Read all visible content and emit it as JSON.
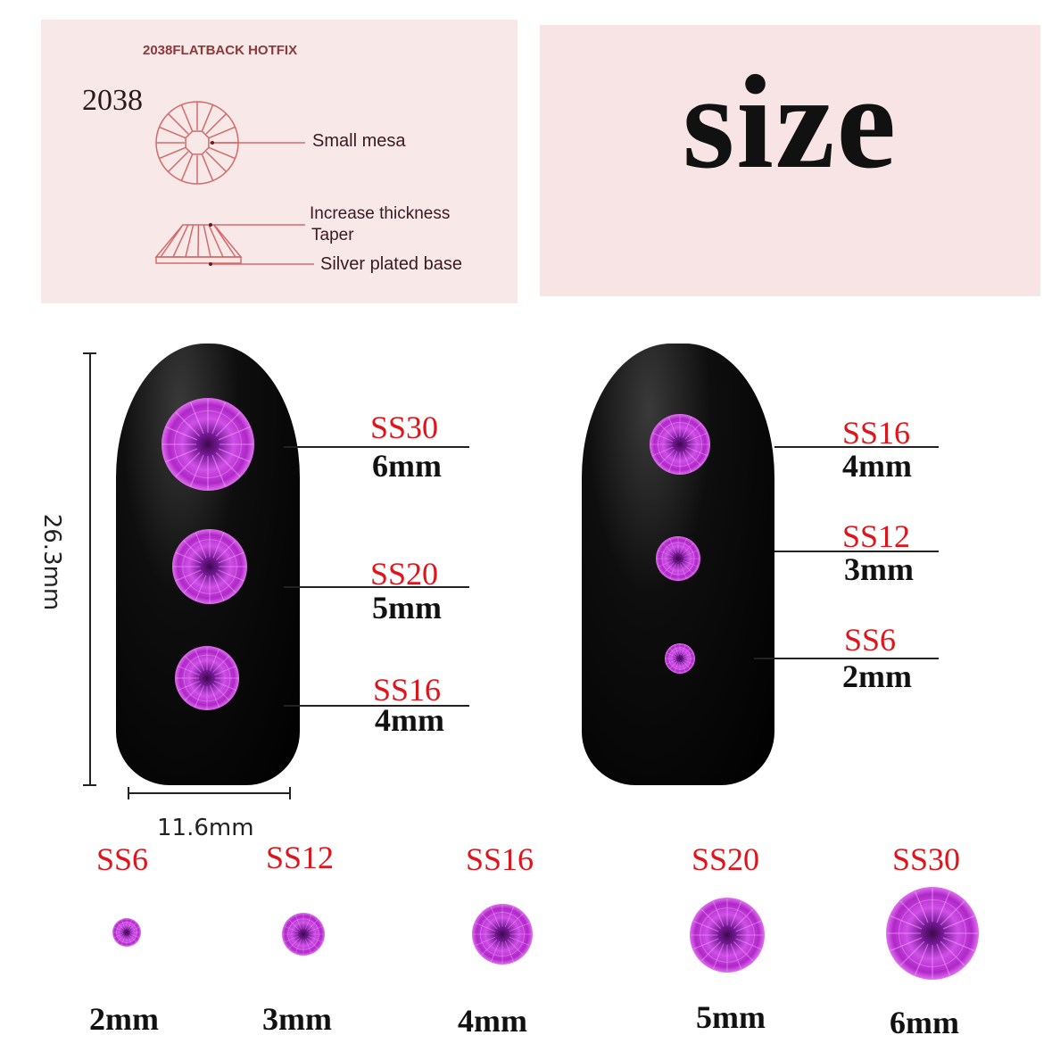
{
  "diagram": {
    "title": "2038FLATBACK HOTFIX",
    "code": "2038",
    "labels": [
      "Small mesa",
      "Increase thickness",
      "Taper",
      "Silver plated base"
    ],
    "line_color": "#d26a6a"
  },
  "headline": "size",
  "nail_left": {
    "gems": [
      {
        "name": "SS30",
        "size": "6mm"
      },
      {
        "name": "SS20",
        "size": "5mm"
      },
      {
        "name": "SS16",
        "size": "4mm"
      }
    ]
  },
  "nail_right": {
    "gems": [
      {
        "name": "SS16",
        "size": "4mm"
      },
      {
        "name": "SS12",
        "size": "3mm"
      },
      {
        "name": "SS6",
        "size": "2mm"
      }
    ]
  },
  "nail_dimensions": {
    "height": "26.3mm",
    "width": "11.6mm"
  },
  "bottom_row": [
    {
      "name": "SS6",
      "size": "2mm"
    },
    {
      "name": "SS12",
      "size": "3mm"
    },
    {
      "name": "SS16",
      "size": "4mm"
    },
    {
      "name": "SS20",
      "size": "5mm"
    },
    {
      "name": "SS30",
      "size": "6mm"
    }
  ],
  "colors": {
    "gem": "#c33ad6",
    "label_red": "#e0141a",
    "panel": "#f8e8e8"
  }
}
